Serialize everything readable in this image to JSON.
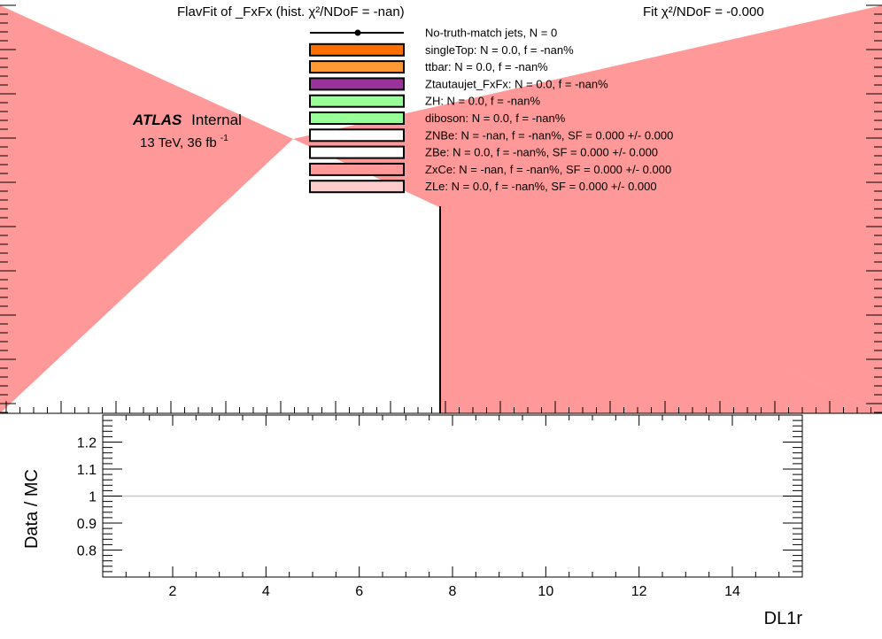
{
  "header": {
    "title_left": "FlavFit of _FxFx (hist.   χ²/NDoF = -nan)",
    "title_right": "Fit χ²/NDoF = -0.000"
  },
  "atlas": {
    "label_bold": "ATLAS",
    "label_rest": "Internal",
    "energy": "13 TeV,  36 fb",
    "energy_sup": "-1"
  },
  "legend": {
    "entries": [
      {
        "kind": "marker",
        "text": "No-truth-match jets, N =   0",
        "color": "#000000"
      },
      {
        "kind": "box",
        "text": "singleTop: N = 0.0, f = -nan%",
        "color": "#ff6f00"
      },
      {
        "kind": "box",
        "text": "ttbar: N = 0.0, f = -nan%",
        "color": "#ff9933"
      },
      {
        "kind": "box",
        "text": "Ztautaujet_FxFx: N = 0.0, f = -nan%",
        "color": "#993399"
      },
      {
        "kind": "box",
        "text": "ZH: N = 0.0, f = -nan%",
        "color": "#99ff99"
      },
      {
        "kind": "box",
        "text": "diboson: N = 0.0, f = -nan%",
        "color": "#99ff99"
      },
      {
        "kind": "box",
        "text": "ZNBe: N = -nan, f = -nan%, SF = 0.000 +/- 0.000",
        "color": "#ffffff"
      },
      {
        "kind": "box",
        "text": "ZBe: N = 0.0, f = -nan%, SF = 0.000 +/- 0.000",
        "color": "#ffffff"
      },
      {
        "kind": "box",
        "text": "ZxCe: N = -nan, f = -nan%, SF = 0.000 +/- 0.000",
        "color": "#ff9999"
      },
      {
        "kind": "box",
        "text": "ZLe: N = 0.0, f = -nan%, SF = 0.000 +/- 0.000",
        "color": "#ffcccc"
      }
    ]
  },
  "chart_data": [
    {
      "type": "area",
      "title": "",
      "xlabel": "",
      "ylabel": "",
      "xlim": [
        0,
        15.5
      ],
      "fill_color": "#ff9999",
      "note": "",
      "vertical_line_x": 7.8
    },
    {
      "type": "line",
      "title": "",
      "xlabel": "DL1r",
      "ylabel": "Data / MC",
      "xlim": [
        0.5,
        15.5
      ],
      "ylim": [
        0.7,
        1.3
      ],
      "xticks": [
        2,
        4,
        6,
        8,
        10,
        12,
        14
      ],
      "yticks": [
        0.8,
        0.9,
        1,
        1.1,
        1.2
      ],
      "reference_line_y": 1,
      "reference_line_color": "#c8c8c8"
    }
  ]
}
